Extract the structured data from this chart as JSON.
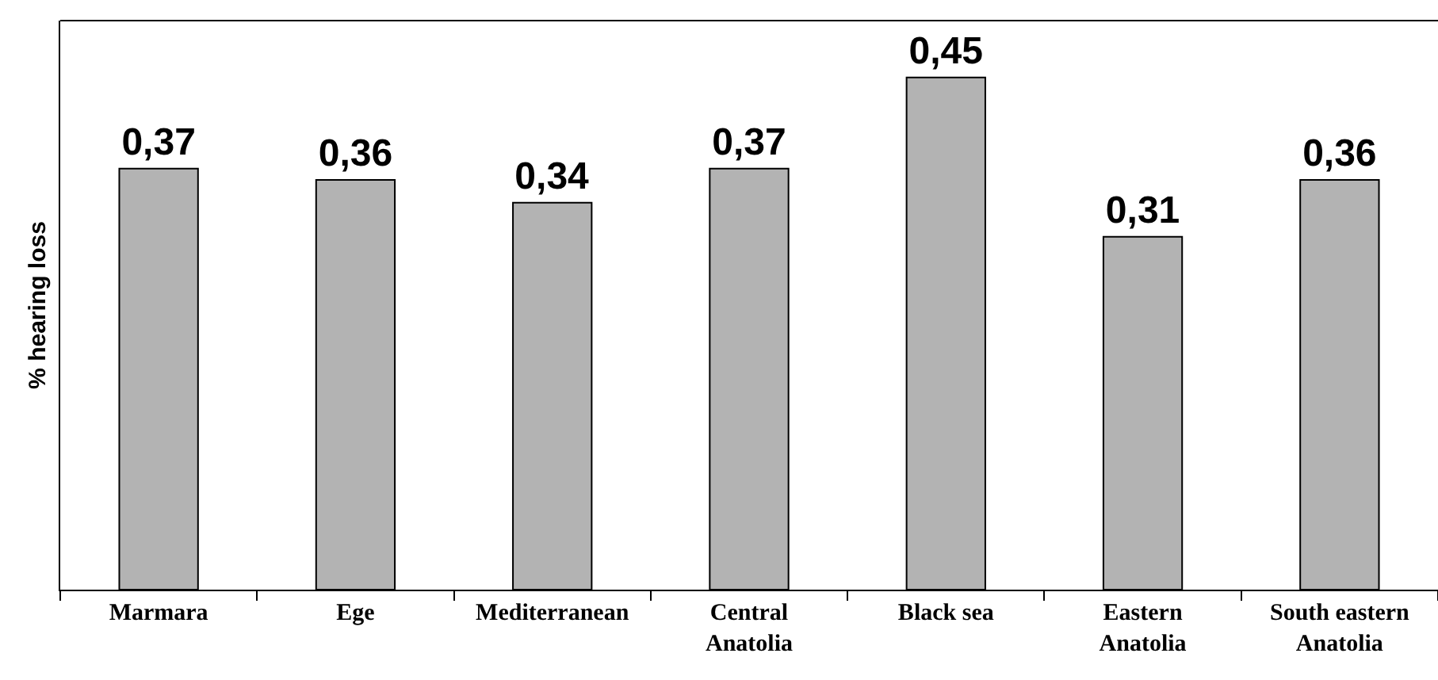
{
  "chart_data": {
    "type": "bar",
    "ylabel": "% hearing loss",
    "categories": [
      "Marmara",
      "Ege",
      "Mediterranean",
      "Central Anatolia",
      "Black sea",
      "Eastern Anatolia",
      "South eastern Anatolia"
    ],
    "values": [
      0.37,
      0.36,
      0.34,
      0.37,
      0.45,
      0.31,
      0.36
    ],
    "value_labels": [
      "0,37",
      "0,36",
      "0,34",
      "0,37",
      "0,45",
      "0,31",
      "0,36"
    ],
    "color": "#b3b3b3",
    "ylim": [
      0,
      0.5
    ],
    "tick_labels": "x",
    "grid": false
  }
}
